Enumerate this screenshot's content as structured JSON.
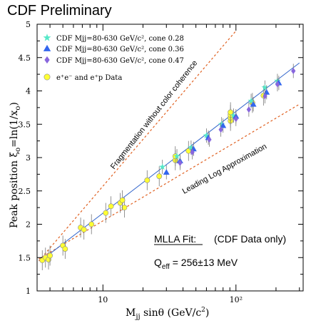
{
  "chart_data": {
    "type": "scatter",
    "title": "CDF Preliminary",
    "xlabel": "M_jj sinθ (GeV/c²)",
    "ylabel": "Peak position ξ₀=ln(1/x₀)",
    "x_scale": "log",
    "xlim": [
      3.2,
      320
    ],
    "ylim": [
      1,
      5
    ],
    "x_ticks": [
      {
        "value": 10,
        "label": "10"
      },
      {
        "value": 100,
        "label": "10²"
      }
    ],
    "y_ticks": [
      1,
      1.5,
      2,
      2.5,
      3,
      3.5,
      4,
      4.5,
      5
    ],
    "legend_position": "top-left",
    "series": [
      {
        "name": "CDF Mjj=80-630 GeV/c², cone 0.28",
        "marker": "star",
        "color": "#55e8c8",
        "points": [
          [
            28,
            2.86
          ],
          [
            36,
            3.02
          ],
          [
            46,
            3.15
          ],
          [
            60,
            3.33
          ],
          [
            78,
            3.5
          ],
          [
            96,
            3.63
          ],
          [
            130,
            3.85
          ],
          [
            165,
            4.05
          ],
          [
            205,
            4.15
          ]
        ]
      },
      {
        "name": "CDF Mjj=80-630 GeV/c², cone 0.36",
        "marker": "triangle",
        "color": "#3366ee",
        "points": [
          [
            30,
            2.78
          ],
          [
            38,
            2.95
          ],
          [
            48,
            3.13
          ],
          [
            62,
            3.3
          ],
          [
            80,
            3.48
          ],
          [
            100,
            3.62
          ],
          [
            135,
            3.8
          ],
          [
            170,
            3.98
          ],
          [
            210,
            4.12
          ]
        ]
      },
      {
        "name": "CDF Mjj=80-630 GeV/c², cone 0.47",
        "marker": "diamond",
        "color": "#8866dd",
        "points": [
          [
            38,
            2.92
          ],
          [
            47,
            3.08
          ],
          [
            63,
            3.27
          ],
          [
            77,
            3.42
          ],
          [
            100,
            3.58
          ],
          [
            125,
            3.72
          ],
          [
            165,
            3.92
          ],
          [
            205,
            4.1
          ],
          [
            270,
            4.3
          ]
        ]
      },
      {
        "name": "e⁺e⁻ and e⁺p Data",
        "marker": "circle",
        "color": "#ffff33",
        "points": [
          [
            3.5,
            1.46
          ],
          [
            3.7,
            1.5
          ],
          [
            3.9,
            1.47
          ],
          [
            4.0,
            1.53
          ],
          [
            5.0,
            1.68
          ],
          [
            5.2,
            1.63
          ],
          [
            6.8,
            1.95
          ],
          [
            7.2,
            1.92
          ],
          [
            8.2,
            2.0
          ],
          [
            10.5,
            2.17
          ],
          [
            11.5,
            2.27
          ],
          [
            13.5,
            2.32
          ],
          [
            14.5,
            2.25
          ],
          [
            14.0,
            2.36
          ],
          [
            21.5,
            2.66
          ],
          [
            26.5,
            2.72
          ],
          [
            35.0,
            2.96
          ],
          [
            35.0,
            3.02
          ],
          [
            44.0,
            3.1
          ],
          [
            91.0,
            3.55
          ],
          [
            91.0,
            3.6
          ],
          [
            91.0,
            3.64
          ],
          [
            91.0,
            3.68
          ],
          [
            133.0,
            3.82
          ],
          [
            161.0,
            3.93
          ]
        ]
      }
    ],
    "fit_line": {
      "name": "MLLA fit",
      "color": "#3366cc",
      "points": [
        [
          3.5,
          1.47
        ],
        [
          300,
          4.42
        ]
      ]
    },
    "curves": [
      {
        "label": "Fragmentation without color coherence",
        "color": "#e06020",
        "points": [
          [
            3.3,
            1.45
          ],
          [
            100,
            4.9
          ]
        ]
      },
      {
        "label": "Leading Log Approximation",
        "color": "#e06020",
        "points": [
          [
            3.3,
            1.48
          ],
          [
            300,
            3.8
          ]
        ]
      }
    ],
    "annotations": {
      "fit_title": "MLLA Fit:",
      "fit_note": "(CDF Data only)",
      "fit_result": "Q_eff = 256±13  MeV"
    }
  }
}
